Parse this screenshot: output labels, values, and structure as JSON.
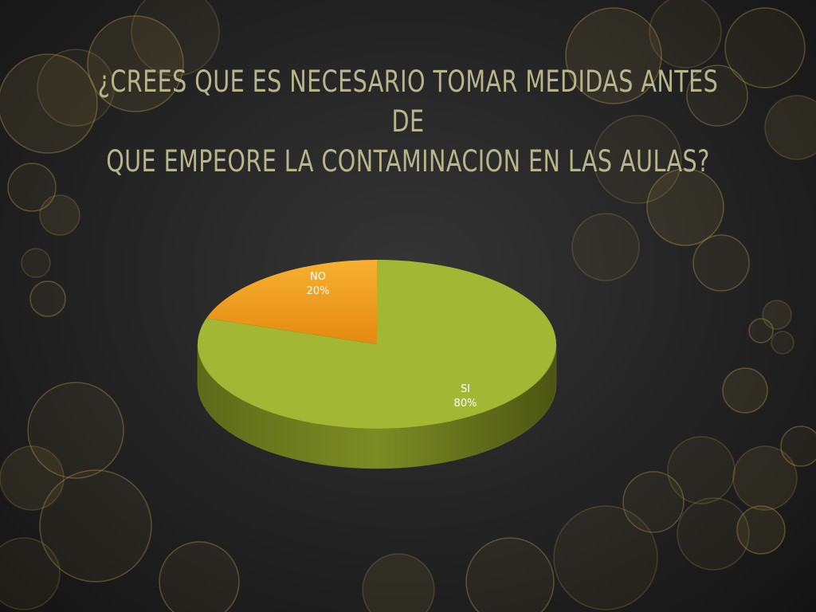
{
  "slide": {
    "title_lines": [
      "¿CREES QUE ES NECESARIO TOMAR MEDIDAS ANTES DE",
      "QUE EMPEORE LA CONTAMINACION EN LAS AULAS?"
    ]
  },
  "colors": {
    "title_text": "#b7b68a",
    "bokeh": "#c8a84a",
    "si_top": "#a2b733",
    "si_side": "#6f7d20",
    "no_top": "#f4a021",
    "no_side": "#b3700f",
    "label_text": "#ffffff"
  },
  "chart_data": {
    "type": "pie",
    "style": "3d",
    "title": "¿CREES QUE ES NECESARIO TOMAR MEDIDAS ANTES DE QUE EMPEORE LA CONTAMINACION EN LAS AULAS?",
    "slices": [
      {
        "category": "NO",
        "percent_label": "20%",
        "value": 20,
        "color": "#f4a021"
      },
      {
        "category": "SI",
        "percent_label": "80%",
        "value": 80,
        "color": "#a2b733"
      }
    ],
    "legend": "none"
  }
}
